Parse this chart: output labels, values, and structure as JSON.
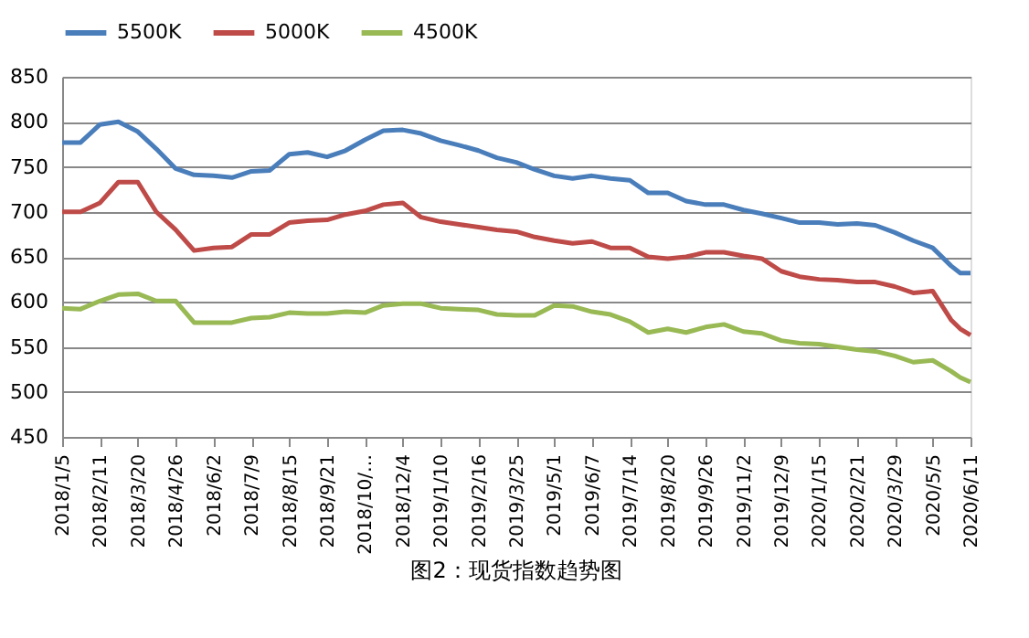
{
  "chart_data": {
    "type": "line",
    "x": [
      "2018-01-05",
      "2018-01-23",
      "2018-02-11",
      "2018-03-01",
      "2018-03-20",
      "2018-04-07",
      "2018-04-26",
      "2018-05-14",
      "2018-06-02",
      "2018-06-20",
      "2018-07-09",
      "2018-07-27",
      "2018-08-15",
      "2018-09-02",
      "2018-09-21",
      "2018-10-09",
      "2018-10-28",
      "2018-11-15",
      "2018-12-04",
      "2018-12-22",
      "2019-01-10",
      "2019-01-28",
      "2019-02-16",
      "2019-03-06",
      "2019-03-25",
      "2019-04-12",
      "2019-05-01",
      "2019-05-19",
      "2019-06-07",
      "2019-06-25",
      "2019-07-14",
      "2019-08-01",
      "2019-08-20",
      "2019-09-07",
      "2019-09-26",
      "2019-10-14",
      "2019-11-02",
      "2019-11-20",
      "2019-12-09",
      "2019-12-27",
      "2020-01-15",
      "2020-02-02",
      "2020-02-21",
      "2020-03-10",
      "2020-03-29",
      "2020-04-16",
      "2020-05-05",
      "2020-05-23",
      "2020-06-01",
      "2020-06-11"
    ],
    "series": [
      {
        "name": "5500K",
        "color": "#4a7ebb",
        "values": [
          777,
          777,
          797,
          800,
          789,
          770,
          748,
          741,
          740,
          738,
          745,
          746,
          764,
          766,
          761,
          768,
          780,
          790,
          791,
          787,
          779,
          774,
          768,
          760,
          755,
          747,
          740,
          737,
          740,
          737,
          735,
          721,
          721,
          712,
          708,
          708,
          702,
          698,
          693,
          688,
          688,
          686,
          687,
          685,
          677,
          668,
          660,
          640,
          632,
          632
        ]
      },
      {
        "name": "5000K",
        "color": "#be4b48",
        "values": [
          700,
          700,
          710,
          733,
          733,
          700,
          680,
          657,
          660,
          661,
          675,
          675,
          688,
          690,
          691,
          697,
          701,
          708,
          710,
          694,
          689,
          686,
          683,
          680,
          678,
          672,
          668,
          665,
          667,
          660,
          660,
          650,
          648,
          650,
          655,
          655,
          651,
          648,
          634,
          628,
          625,
          624,
          622,
          622,
          617,
          610,
          612,
          580,
          570,
          563
        ]
      },
      {
        "name": "4500K",
        "color": "#98b954",
        "values": [
          593,
          592,
          601,
          608,
          609,
          601,
          601,
          577,
          577,
          577,
          582,
          583,
          588,
          587,
          587,
          589,
          588,
          596,
          598,
          598,
          593,
          592,
          591,
          586,
          585,
          585,
          596,
          595,
          589,
          586,
          578,
          566,
          570,
          566,
          572,
          575,
          567,
          565,
          557,
          554,
          553,
          550,
          547,
          545,
          540,
          533,
          535,
          523,
          516,
          511
        ]
      }
    ],
    "ylim": [
      450,
      850
    ],
    "yticks": [
      450,
      500,
      550,
      600,
      650,
      700,
      750,
      800,
      850
    ],
    "xlim": [
      "2018-01-05",
      "2020-06-11"
    ],
    "xticks": [
      {
        "value": "2018-01-05",
        "label": "2018/1/5"
      },
      {
        "value": "2018-02-11",
        "label": "2018/2/11"
      },
      {
        "value": "2018-03-20",
        "label": "2018/3/20"
      },
      {
        "value": "2018-04-26",
        "label": "2018/4/26"
      },
      {
        "value": "2018-06-02",
        "label": "2018/6/2"
      },
      {
        "value": "2018-07-09",
        "label": "2018/7/9"
      },
      {
        "value": "2018-08-15",
        "label": "2018/8/15"
      },
      {
        "value": "2018-09-21",
        "label": "2018/9/21"
      },
      {
        "value": "2018-10-28",
        "label": "2018/10/…"
      },
      {
        "value": "2018-12-04",
        "label": "2018/12/4"
      },
      {
        "value": "2019-01-10",
        "label": "2019/1/10"
      },
      {
        "value": "2019-02-16",
        "label": "2019/2/16"
      },
      {
        "value": "2019-03-25",
        "label": "2019/3/25"
      },
      {
        "value": "2019-05-01",
        "label": "2019/5/1"
      },
      {
        "value": "2019-06-07",
        "label": "2019/6/7"
      },
      {
        "value": "2019-07-14",
        "label": "2019/7/14"
      },
      {
        "value": "2019-08-20",
        "label": "2019/8/20"
      },
      {
        "value": "2019-09-26",
        "label": "2019/9/26"
      },
      {
        "value": "2019-11-02",
        "label": "2019/11/2"
      },
      {
        "value": "2019-12-09",
        "label": "2019/12/9"
      },
      {
        "value": "2020-01-15",
        "label": "2020/1/15"
      },
      {
        "value": "2020-02-21",
        "label": "2020/2/21"
      },
      {
        "value": "2020-03-29",
        "label": "2020/3/29"
      },
      {
        "value": "2020-05-05",
        "label": "2020/5/5"
      },
      {
        "value": "2020-06-11",
        "label": "2020/6/11"
      }
    ],
    "grid": "y",
    "legend": "top",
    "marker": "none",
    "line_style": "solid",
    "annotations": [
      "图2：现货指数趋势图"
    ]
  }
}
